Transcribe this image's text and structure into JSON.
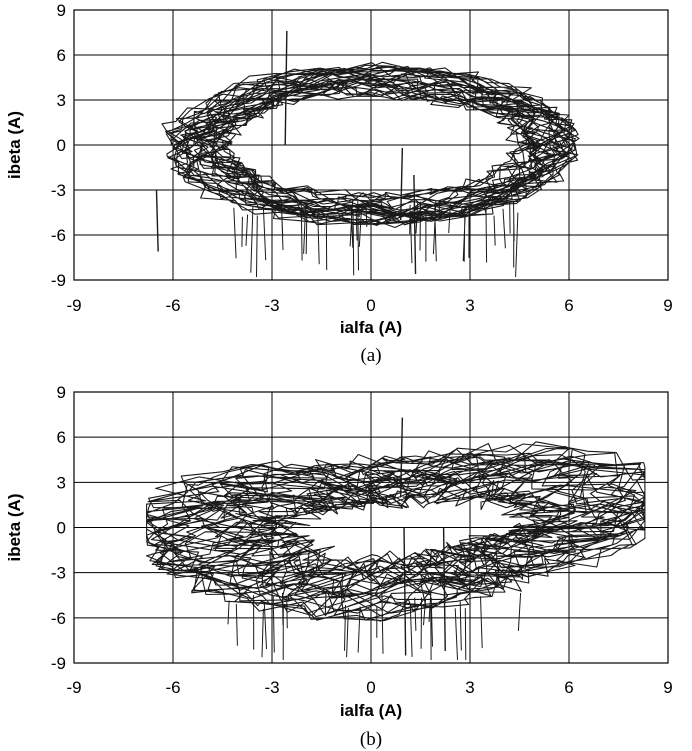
{
  "chart_data": [
    {
      "type": "line",
      "caption": "(a)",
      "xlabel": "ialfa (A)",
      "ylabel": "ibeta (A)",
      "xlim": [
        -9,
        9
      ],
      "ylim": [
        -9,
        9
      ],
      "xticks": [
        "-9",
        "-6",
        "-3",
        "0",
        "3",
        "6",
        "9"
      ],
      "yticks": [
        "9",
        "6",
        "3",
        "0",
        "-3",
        "-6",
        "-9"
      ],
      "grid": true,
      "line_color": "#1a1a1a",
      "pattern": {
        "shape": "elliptical current trajectory (alpha-beta plane)",
        "center": [
          0,
          0
        ],
        "outer_semi_axes": [
          6.3,
          5.3
        ],
        "inner_semi_axes": [
          4.3,
          3.3
        ],
        "x_extent": [
          -6.6,
          7.0
        ],
        "y_extent": [
          -8.8,
          7.8
        ],
        "spikes": [
          {
            "x": -2.6,
            "y_from": 0.0,
            "y_to": 7.6
          },
          {
            "x": 1.3,
            "y_from": -2.0,
            "y_to": -8.6
          },
          {
            "x": 0.9,
            "y_from": -5.0,
            "y_to": -0.2
          },
          {
            "x": -6.5,
            "y_from": -3.0,
            "y_to": -7.1
          }
        ]
      }
    },
    {
      "type": "line",
      "caption": "(b)",
      "xlabel": "ialfa (A)",
      "ylabel": "ibeta (A)",
      "xlim": [
        -9,
        9
      ],
      "ylim": [
        -9,
        9
      ],
      "xticks": [
        "-9",
        "-6",
        "-3",
        "0",
        "3",
        "6",
        "9"
      ],
      "yticks": [
        "9",
        "6",
        "3",
        "0",
        "-3",
        "-6",
        "-9"
      ],
      "grid": true,
      "line_color": "#1a1a1a",
      "pattern": {
        "shape": "distorted elliptical current trajectory (alpha-beta plane)",
        "center": [
          0.9,
          0.0
        ],
        "outer_semi_axes": [
          7.3,
          6.0
        ],
        "inner_semi_axes": [
          2.8,
          1.8
        ],
        "x_extent": [
          -6.8,
          8.3
        ],
        "y_extent": [
          -8.5,
          7.4
        ],
        "spikes": [
          {
            "x": 1.0,
            "y_from": 0.0,
            "y_to": -8.5
          },
          {
            "x": 2.2,
            "y_from": 0.0,
            "y_to": -8.2
          },
          {
            "x": 0.9,
            "y_from": 2.0,
            "y_to": 7.3
          }
        ]
      }
    }
  ]
}
